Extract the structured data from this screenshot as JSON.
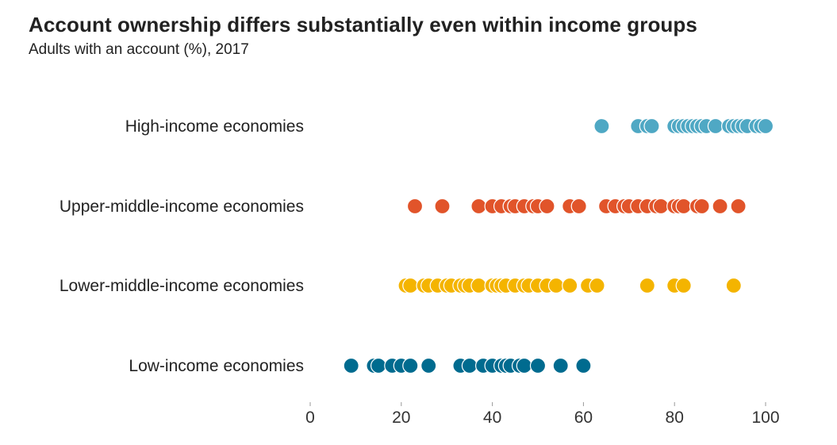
{
  "chart_data": {
    "type": "scatter",
    "title": "Account ownership differs substantially even within income groups",
    "subtitle": "Adults with an account (%), 2017",
    "xlim": [
      0,
      100
    ],
    "x_ticks": [
      "0",
      "20",
      "40",
      "60",
      "80",
      "100"
    ],
    "grid": false,
    "categories": [
      "High-income economies",
      "Upper-middle-income economies",
      "Lower-middle-income economies",
      "Low-income economies"
    ],
    "series": [
      {
        "category": "High-income economies",
        "color": "#4FA8C4",
        "values": [
          64,
          72,
          74,
          75,
          80,
          81,
          82,
          83,
          84,
          85,
          86,
          87,
          89,
          92,
          93,
          94,
          95,
          96,
          98,
          99,
          100
        ]
      },
      {
        "category": "Upper-middle-income economies",
        "color": "#E1542A",
        "values": [
          23,
          29,
          37,
          40,
          42,
          44,
          45,
          47,
          49,
          50,
          52,
          57,
          59,
          65,
          67,
          69,
          70,
          72,
          74,
          76,
          77,
          80,
          81,
          82,
          85,
          86,
          90,
          94
        ]
      },
      {
        "category": "Lower-middle-income economies",
        "color": "#F4B400",
        "values": [
          21,
          22,
          25,
          26,
          28,
          30,
          31,
          33,
          34,
          35,
          37,
          40,
          41,
          42,
          43,
          45,
          47,
          48,
          50,
          52,
          54,
          57,
          61,
          63,
          74,
          80,
          82,
          93
        ]
      },
      {
        "category": "Low-income economies",
        "color": "#006B8F",
        "values": [
          9,
          14,
          15,
          18,
          20,
          22,
          26,
          33,
          35,
          38,
          40,
          42,
          43,
          44,
          46,
          47,
          50,
          55,
          60
        ]
      }
    ]
  }
}
